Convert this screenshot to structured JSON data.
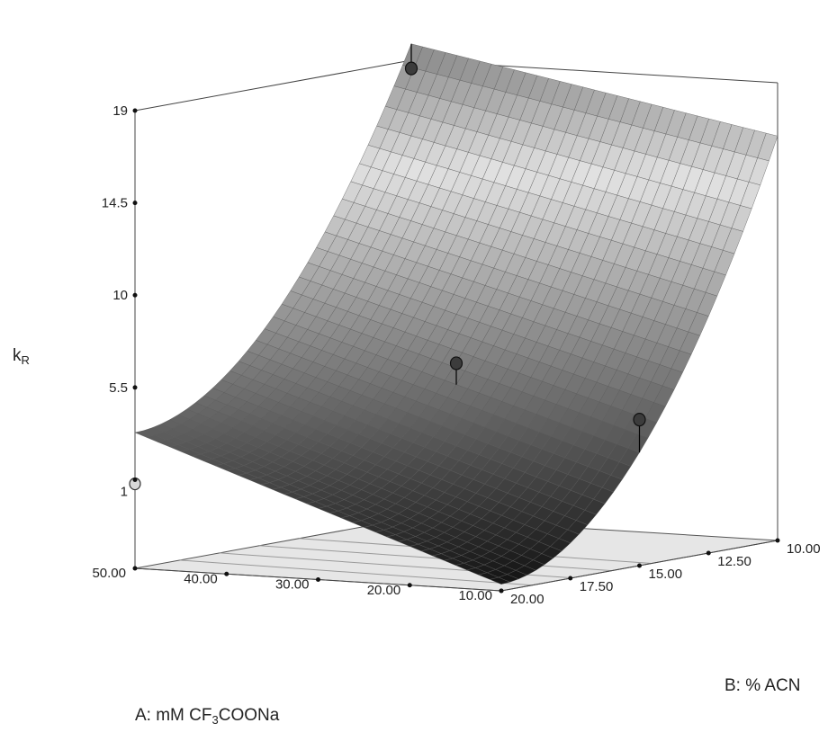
{
  "chart_data": {
    "type": "surface3d",
    "z_axis": {
      "label": "k",
      "label_sub": "R",
      "ticks": [
        "19",
        "14.5",
        "10",
        "5.5",
        "1"
      ],
      "tick_values": [
        19,
        14.5,
        10,
        5.5,
        1
      ],
      "range": [
        1,
        19
      ]
    },
    "a_axis": {
      "label_parts": [
        "A: mM CF",
        "3",
        "COONa"
      ],
      "ticks": [
        "50.00",
        "40.00",
        "30.00",
        "20.00",
        "10.00"
      ],
      "tick_values": [
        50,
        40,
        30,
        20,
        10
      ],
      "range": [
        10,
        50
      ]
    },
    "b_axis": {
      "label": "B: % ACN",
      "ticks": [
        "10.00",
        "12.50",
        "15.00",
        "17.50",
        "20.00"
      ],
      "tick_values": [
        10,
        12.5,
        15,
        17.5,
        20
      ],
      "range": [
        10,
        20
      ]
    },
    "surface_corners_kR": {
      "A50_B10": 19.8,
      "A10_B10": 16.4,
      "A50_B20": 3.3,
      "A10_B20": -3.0
    },
    "design_points": [
      {
        "A": 50,
        "B": 10,
        "kR": 18.6,
        "above_surface": true
      },
      {
        "A": 30,
        "B": 15,
        "kR": 6.0,
        "above_surface": true
      },
      {
        "A": 10,
        "B": 15,
        "kR": 3.8,
        "above_surface": true
      },
      {
        "A": 50,
        "B": 20,
        "kR": 0.8,
        "above_surface": false
      }
    ],
    "grid": true,
    "colormap": "grayscale"
  }
}
